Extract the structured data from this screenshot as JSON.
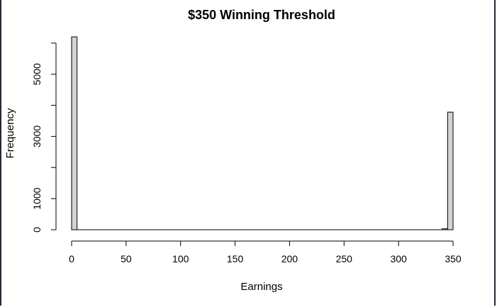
{
  "chart_data": {
    "type": "bar",
    "title": "$350 Winning Threshold",
    "xlabel": "Earnings",
    "ylabel": "Frequency",
    "x_ticks": [
      0,
      50,
      100,
      150,
      200,
      250,
      300,
      350
    ],
    "y_ticks": [
      0,
      1000,
      3000,
      5000
    ],
    "y_minor_ticks": [
      0,
      1000,
      2000,
      3000,
      4000,
      5000,
      6000
    ],
    "xlim": [
      0,
      350
    ],
    "ylim": [
      0,
      6200
    ],
    "bin_width": 5,
    "bins": [
      {
        "start": 0,
        "end": 5,
        "value": 6200
      },
      {
        "start": 340,
        "end": 345,
        "value": 30
      },
      {
        "start": 345,
        "end": 350,
        "value": 3780
      }
    ],
    "bar_color": "#d3d3d3",
    "grid": false
  }
}
